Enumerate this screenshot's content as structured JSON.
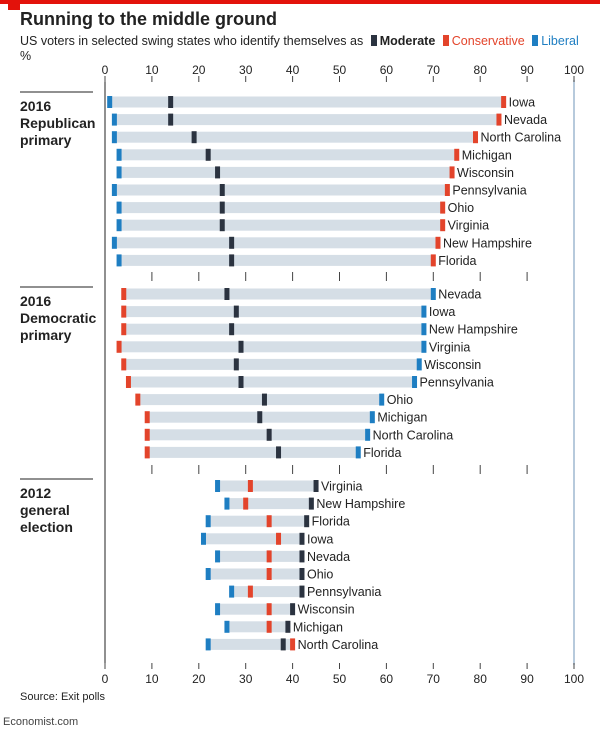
{
  "title": "Running to the middle ground",
  "subtitle": "US voters in selected swing states who identify themselves as",
  "unit": "%",
  "source": "Source: Exit polls",
  "brand": "Economist.com",
  "colors": {
    "moderate": "#2b3340",
    "conservative": "#e3442b",
    "liberal": "#1e7ec2",
    "bar": "#d5dee6",
    "axis": "#222222",
    "accent": "#e3120b",
    "line100": "#9fb8d0"
  },
  "chart_data": {
    "type": "dot-range",
    "xlim": [
      0,
      100
    ],
    "xticks": [
      0,
      10,
      20,
      30,
      40,
      50,
      60,
      70,
      80,
      90,
      100
    ],
    "legend": [
      {
        "key": "moderate",
        "label": "Moderate"
      },
      {
        "key": "conservative",
        "label": "Conservative"
      },
      {
        "key": "liberal",
        "label": "Liberal"
      }
    ],
    "groups": [
      {
        "label_lines": [
          "2016",
          "Republican",
          "primary"
        ],
        "rows": [
          {
            "state": "Iowa",
            "liberal": 1,
            "moderate": 14,
            "conservative": 85
          },
          {
            "state": "Nevada",
            "liberal": 2,
            "moderate": 14,
            "conservative": 84
          },
          {
            "state": "North Carolina",
            "liberal": 2,
            "moderate": 19,
            "conservative": 79
          },
          {
            "state": "Michigan",
            "liberal": 3,
            "moderate": 22,
            "conservative": 75
          },
          {
            "state": "Wisconsin",
            "liberal": 3,
            "moderate": 24,
            "conservative": 74
          },
          {
            "state": "Pennsylvania",
            "liberal": 2,
            "moderate": 25,
            "conservative": 73
          },
          {
            "state": "Ohio",
            "liberal": 3,
            "moderate": 25,
            "conservative": 72
          },
          {
            "state": "Virginia",
            "liberal": 3,
            "moderate": 25,
            "conservative": 72
          },
          {
            "state": "New Hampshire",
            "liberal": 2,
            "moderate": 27,
            "conservative": 71
          },
          {
            "state": "Florida",
            "liberal": 3,
            "moderate": 27,
            "conservative": 70
          }
        ]
      },
      {
        "label_lines": [
          "2016",
          "Democratic",
          "primary"
        ],
        "rows": [
          {
            "state": "Nevada",
            "conservative": 4,
            "moderate": 26,
            "liberal": 70
          },
          {
            "state": "Iowa",
            "conservative": 4,
            "moderate": 28,
            "liberal": 68
          },
          {
            "state": "New Hampshire",
            "conservative": 4,
            "moderate": 27,
            "liberal": 68
          },
          {
            "state": "Virginia",
            "conservative": 3,
            "moderate": 29,
            "liberal": 68
          },
          {
            "state": "Wisconsin",
            "conservative": 4,
            "moderate": 28,
            "liberal": 67
          },
          {
            "state": "Pennsylvania",
            "conservative": 5,
            "moderate": 29,
            "liberal": 66
          },
          {
            "state": "Ohio",
            "conservative": 7,
            "moderate": 34,
            "liberal": 59
          },
          {
            "state": "Michigan",
            "conservative": 9,
            "moderate": 33,
            "liberal": 57
          },
          {
            "state": "North Carolina",
            "conservative": 9,
            "moderate": 35,
            "liberal": 56
          },
          {
            "state": "Florida",
            "conservative": 9,
            "moderate": 37,
            "liberal": 54
          }
        ]
      },
      {
        "label_lines": [
          "2012",
          "general",
          "election"
        ],
        "rows": [
          {
            "state": "Virginia",
            "liberal": 24,
            "conservative": 31,
            "moderate": 45
          },
          {
            "state": "New Hampshire",
            "liberal": 26,
            "conservative": 30,
            "moderate": 44
          },
          {
            "state": "Florida",
            "liberal": 22,
            "conservative": 35,
            "moderate": 43
          },
          {
            "state": "Iowa",
            "liberal": 21,
            "conservative": 37,
            "moderate": 42
          },
          {
            "state": "Nevada",
            "liberal": 24,
            "conservative": 35,
            "moderate": 42
          },
          {
            "state": "Ohio",
            "liberal": 22,
            "conservative": 35,
            "moderate": 42
          },
          {
            "state": "Pennsylvania",
            "liberal": 27,
            "conservative": 31,
            "moderate": 42
          },
          {
            "state": "Wisconsin",
            "liberal": 24,
            "conservative": 35,
            "moderate": 40
          },
          {
            "state": "Michigan",
            "liberal": 26,
            "conservative": 35,
            "moderate": 39
          },
          {
            "state": "North Carolina",
            "liberal": 22,
            "moderate": 38,
            "conservative": 40
          }
        ]
      }
    ]
  }
}
